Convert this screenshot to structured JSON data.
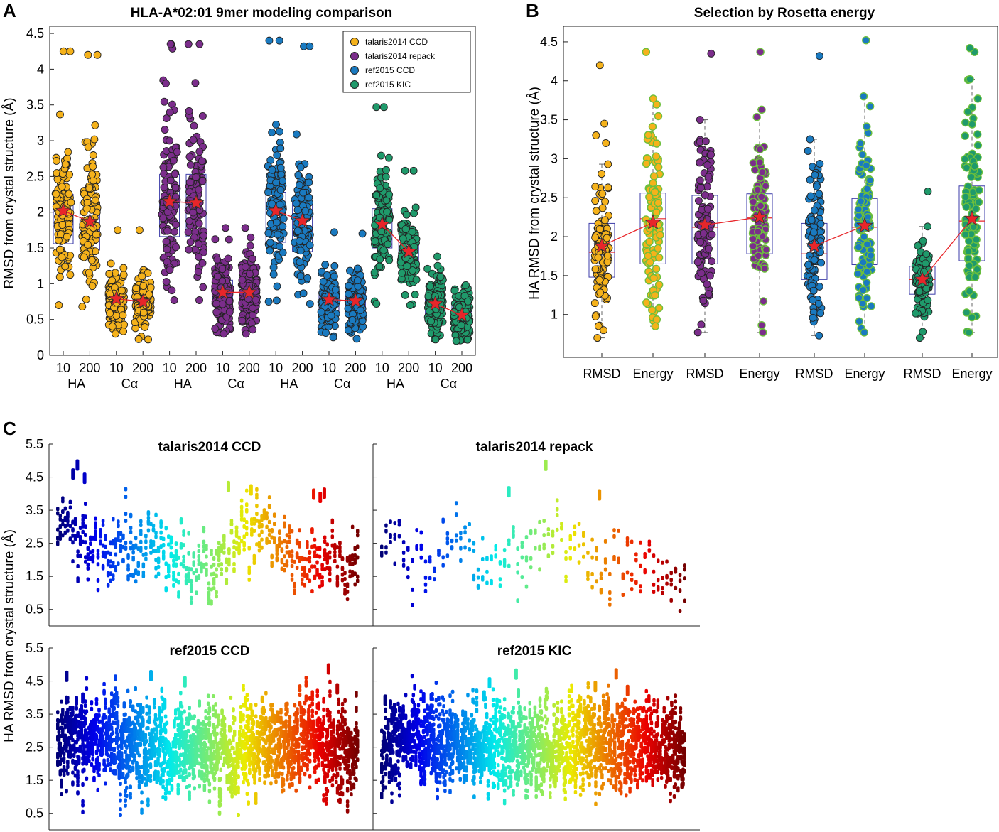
{
  "colors": {
    "talaris2014_ccd": "#f5b21b",
    "talaris2014_repack": "#7b2d8b",
    "ref2015_ccd": "#1a7ac0",
    "ref2015_kic": "#1f9a6b",
    "median_line": "#e8262a",
    "star": "#e8262a",
    "box": "#3b3ba8"
  },
  "chart_data": [
    {
      "panel": "A",
      "type": "scatter",
      "title": "HLA-A*02:01 9mer modeling comparison",
      "ylabel": "RMSD from crystal structure (Å)",
      "ylim": [
        0,
        4.6
      ],
      "yticks": [
        "0",
        "0.5",
        "1",
        "1.5",
        "2",
        "2.5",
        "3",
        "3.5",
        "4",
        "4.5"
      ],
      "legend": [
        "talaris2014 CCD",
        "talaris2014 repack",
        "ref2015 CCD",
        "ref2015 KIC"
      ],
      "legend_location": "top-right",
      "tick_labels": [
        "10",
        "200",
        "10",
        "200",
        "10",
        "200",
        "10",
        "200",
        "10",
        "200",
        "10",
        "200",
        "10",
        "200",
        "10",
        "200"
      ],
      "group_labels": [
        "HA",
        "Cα",
        "HA",
        "Cα",
        "HA",
        "Cα",
        "HA",
        "Cα"
      ],
      "series": [
        {
          "name": "talaris2014 CCD",
          "groups": [
            {
              "metric": "HA",
              "n": 10,
              "mean": 2.02,
              "q1": 1.56,
              "q3": 2.25,
              "min": 0.7,
              "max": 4.25,
              "outliers": [
                4.25
              ]
            },
            {
              "metric": "HA",
              "n": 200,
              "mean": 1.87,
              "q1": 1.47,
              "q3": 2.13,
              "min": 0.68,
              "max": 4.2,
              "outliers": [
                4.2
              ]
            },
            {
              "metric": "Cα",
              "n": 10,
              "mean": 0.79,
              "q1": 0.67,
              "q3": 0.92,
              "min": 0.3,
              "max": 1.75,
              "outliers": []
            },
            {
              "metric": "Cα",
              "n": 200,
              "mean": 0.75,
              "q1": 0.64,
              "q3": 0.88,
              "min": 0.22,
              "max": 1.75,
              "outliers": []
            }
          ]
        },
        {
          "name": "talaris2014 repack",
          "groups": [
            {
              "metric": "HA",
              "n": 10,
              "mean": 2.15,
              "q1": 1.66,
              "q3": 2.53,
              "min": 0.77,
              "max": 4.35,
              "outliers": [
                4.35
              ]
            },
            {
              "metric": "HA",
              "n": 200,
              "mean": 2.13,
              "q1": 1.66,
              "q3": 2.53,
              "min": 0.77,
              "max": 4.35,
              "outliers": [
                4.35
              ]
            },
            {
              "metric": "Cα",
              "n": 10,
              "mean": 0.88,
              "q1": 0.7,
              "q3": 1.05,
              "min": 0.3,
              "max": 1.78,
              "outliers": []
            },
            {
              "metric": "Cα",
              "n": 200,
              "mean": 0.88,
              "q1": 0.7,
              "q3": 1.05,
              "min": 0.3,
              "max": 1.78,
              "outliers": []
            }
          ]
        },
        {
          "name": "ref2015 CCD",
          "groups": [
            {
              "metric": "HA",
              "n": 10,
              "mean": 2.02,
              "q1": 1.58,
              "q3": 2.28,
              "min": 0.75,
              "max": 4.4,
              "outliers": [
                4.4
              ]
            },
            {
              "metric": "HA",
              "n": 200,
              "mean": 1.88,
              "q1": 1.45,
              "q3": 2.15,
              "min": 0.72,
              "max": 4.32,
              "outliers": [
                4.32
              ]
            },
            {
              "metric": "Cα",
              "n": 10,
              "mean": 0.78,
              "q1": 0.6,
              "q3": 0.9,
              "min": 0.25,
              "max": 1.72,
              "outliers": []
            },
            {
              "metric": "Cα",
              "n": 200,
              "mean": 0.76,
              "q1": 0.6,
              "q3": 0.9,
              "min": 0.23,
              "max": 1.7,
              "outliers": []
            }
          ]
        },
        {
          "name": "ref2015 KIC",
          "groups": [
            {
              "metric": "HA",
              "n": 10,
              "mean": 1.83,
              "q1": 1.5,
              "q3": 2.05,
              "min": 0.72,
              "max": 3.47,
              "outliers": [
                3.47
              ]
            },
            {
              "metric": "HA",
              "n": 200,
              "mean": 1.45,
              "q1": 1.25,
              "q3": 1.62,
              "min": 0.7,
              "max": 2.58,
              "outliers": [
                2.58
              ]
            },
            {
              "metric": "Cα",
              "n": 10,
              "mean": 0.72,
              "q1": 0.55,
              "q3": 0.85,
              "min": 0.22,
              "max": 1.38,
              "outliers": []
            },
            {
              "metric": "Cα",
              "n": 200,
              "mean": 0.56,
              "q1": 0.45,
              "q3": 0.7,
              "min": 0.2,
              "max": 0.98,
              "outliers": []
            }
          ]
        }
      ]
    },
    {
      "panel": "B",
      "type": "scatter",
      "title": "Selection by Rosetta energy",
      "ylabel": "HA RMSD from crystal structure (Å)",
      "ylim": [
        0.45,
        4.7
      ],
      "yticks": [
        "1",
        "1.5",
        "2",
        "2.5",
        "3",
        "3.5",
        "4",
        "4.5"
      ],
      "xtick_labels": [
        "RMSD",
        "Energy",
        "RMSD",
        "Energy",
        "RMSD",
        "Energy",
        "RMSD",
        "Energy"
      ],
      "series": [
        {
          "name": "talaris2014 CCD",
          "groups": [
            {
              "selection": "RMSD",
              "mean": 1.88,
              "median": 1.8,
              "q1": 1.48,
              "q3": 2.17,
              "min": 0.7,
              "max": 2.93,
              "outliers": [
                3.2,
                3.3,
                3.45,
                4.2
              ]
            },
            {
              "selection": "Energy",
              "mean": 2.18,
              "median": 2.23,
              "q1": 1.65,
              "q3": 2.56,
              "min": 0.85,
              "max": 3.77,
              "outliers": [
                4.37
              ]
            }
          ]
        },
        {
          "name": "talaris2014 repack",
          "groups": [
            {
              "selection": "RMSD",
              "mean": 2.15,
              "median": 2.12,
              "q1": 1.65,
              "q3": 2.53,
              "min": 0.77,
              "max": 3.5,
              "outliers": [
                4.35
              ]
            },
            {
              "selection": "Energy",
              "mean": 2.25,
              "median": 2.24,
              "q1": 1.78,
              "q3": 2.55,
              "min": 0.77,
              "max": 3.63,
              "outliers": [
                4.37
              ]
            }
          ]
        },
        {
          "name": "ref2015 CCD",
          "groups": [
            {
              "selection": "RMSD",
              "mean": 1.88,
              "median": 1.78,
              "q1": 1.45,
              "q3": 2.17,
              "min": 0.73,
              "max": 3.25,
              "outliers": [
                4.32
              ]
            },
            {
              "selection": "Energy",
              "mean": 2.14,
              "median": 2.12,
              "q1": 1.64,
              "q3": 2.49,
              "min": 0.77,
              "max": 3.8,
              "outliers": [
                4.52
              ]
            }
          ]
        },
        {
          "name": "ref2015 KIC",
          "groups": [
            {
              "selection": "RMSD",
              "mean": 1.45,
              "median": 1.45,
              "q1": 1.26,
              "q3": 1.62,
              "min": 0.7,
              "max": 2.13,
              "outliers": [
                2.58
              ]
            },
            {
              "selection": "Energy",
              "mean": 2.23,
              "median": 2.2,
              "q1": 1.69,
              "q3": 2.65,
              "min": 0.77,
              "max": 4.02,
              "outliers": [
                4.37,
                4.42
              ]
            }
          ]
        }
      ]
    },
    {
      "panel": "C",
      "type": "scatter",
      "ylabel": "HA RMSD from crystal structure (Å)",
      "ylim": [
        0,
        5.5
      ],
      "yticks": [
        "0.5",
        "1.5",
        "2.5",
        "3.5",
        "4.5",
        "5.5"
      ],
      "colormap": "jet (blue → red, left to right)",
      "subplots": [
        {
          "title": "talaris2014 CCD",
          "density": "medium",
          "center": [
            3.3,
            2.6,
            2.2,
            2.1,
            2.5,
            2.0,
            1.9,
            2.3,
            2.9,
            2.2,
            1.9,
            1.9,
            1.8
          ],
          "spread": 0.9
        },
        {
          "title": "talaris2014 repack",
          "density": "sparse",
          "center": [
            3.0,
            1.8,
            2.1,
            2.5,
            2.2,
            1.9,
            2.3,
            2.8,
            2.2,
            2.1,
            1.9,
            1.8,
            1.7
          ],
          "spread": 0.9
        },
        {
          "title": "ref2015 CCD",
          "density": "dense",
          "center": [
            2.7,
            2.7,
            2.8,
            2.6,
            2.4,
            2.6,
            2.5,
            2.4,
            2.6,
            2.5,
            2.7,
            2.4,
            2.1
          ],
          "spread": 1.4
        },
        {
          "title": "ref2015 KIC",
          "density": "dense",
          "center": [
            2.7,
            2.8,
            2.8,
            2.6,
            2.4,
            2.6,
            2.5,
            2.6,
            2.7,
            2.5,
            2.7,
            2.5,
            2.4
          ],
          "spread": 1.4
        }
      ]
    }
  ]
}
